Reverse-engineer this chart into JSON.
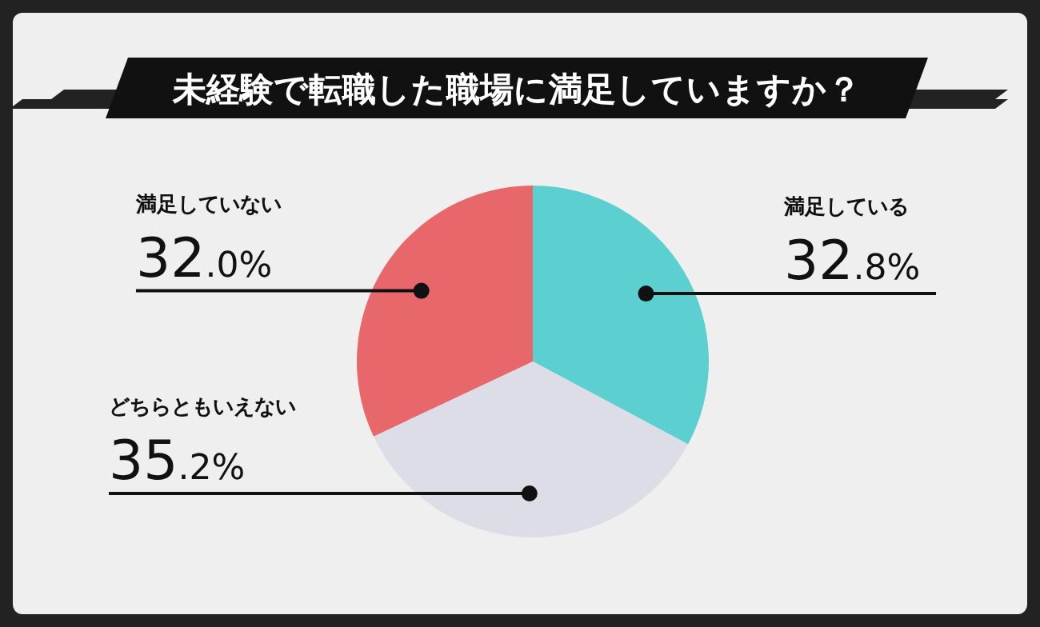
{
  "chart_data": {
    "type": "pie",
    "title": "未経験で転職した職場に満足していますか？",
    "categories": [
      "満足している",
      "どちらともいえない",
      "満足していない"
    ],
    "values": [
      32.8,
      35.2,
      32.0
    ],
    "value_labels": [
      "32.8%",
      "35.2%",
      "32.0%"
    ],
    "colors": [
      "#5ccfd0",
      "#dcdde6",
      "#e8676a"
    ]
  }
}
